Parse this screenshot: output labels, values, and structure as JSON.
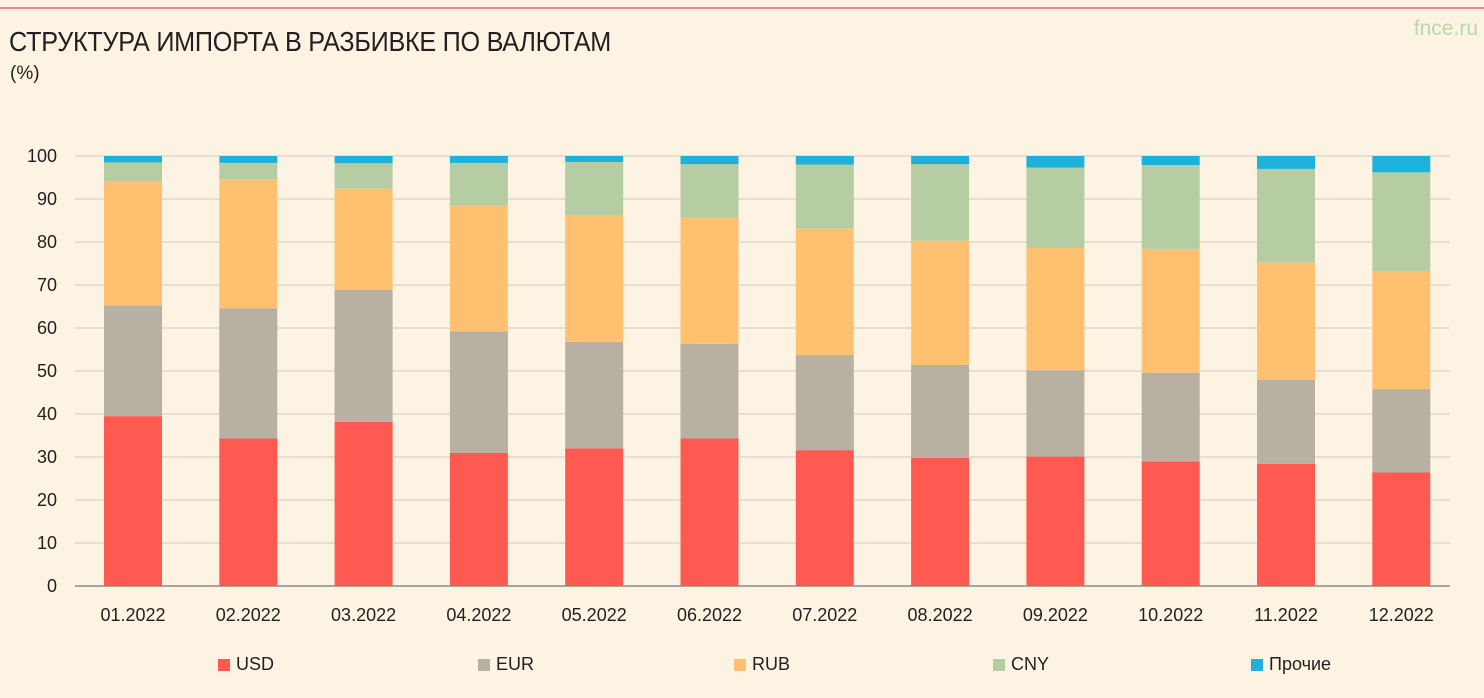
{
  "header": {
    "title": "СТРУКТУРА ИМПОРТА В РАЗБИВКЕ ПО ВАЛЮТАМ",
    "unit": "(%)",
    "brand": "fnce.ru"
  },
  "chart_data": {
    "type": "bar",
    "stacked": true,
    "title": "СТРУКТУРА ИМПОРТА В РАЗБИВКЕ ПО ВАЛЮТАМ",
    "ylabel": "(%)",
    "ylim": [
      0,
      100
    ],
    "yticks": [
      0,
      10,
      20,
      30,
      40,
      50,
      60,
      70,
      80,
      90,
      100
    ],
    "grid": true,
    "legend_position": "bottom",
    "categories": [
      "01.2022",
      "02.2022",
      "03.2022",
      "04.2022",
      "05.2022",
      "06.2022",
      "07.2022",
      "08.2022",
      "09.2022",
      "10.2022",
      "11.2022",
      "12.2022"
    ],
    "series": [
      {
        "name": "USD",
        "color": "#ff5a51",
        "values": [
          39.5,
          34.3,
          38.2,
          31.0,
          32.0,
          34.3,
          31.6,
          29.8,
          30.1,
          29.0,
          28.4,
          26.4
        ]
      },
      {
        "name": "EUR",
        "color": "#b8b0a3",
        "values": [
          25.8,
          30.3,
          30.7,
          28.2,
          24.8,
          22.0,
          22.1,
          21.6,
          20.1,
          20.6,
          19.5,
          19.4
        ]
      },
      {
        "name": "RUB",
        "color": "#ffc170",
        "values": [
          28.8,
          29.9,
          23.5,
          29.3,
          29.3,
          29.4,
          29.4,
          28.9,
          28.4,
          28.8,
          27.3,
          27.3
        ]
      },
      {
        "name": "CNY",
        "color": "#b6cda4",
        "values": [
          4.4,
          3.9,
          5.9,
          9.9,
          12.5,
          12.4,
          14.9,
          17.8,
          18.7,
          19.5,
          21.8,
          23.1
        ]
      },
      {
        "name": "Прочие",
        "color": "#1eb2da",
        "values": [
          1.5,
          1.6,
          1.7,
          1.6,
          1.4,
          1.9,
          2.0,
          1.9,
          2.7,
          2.1,
          3.0,
          3.8
        ]
      }
    ]
  }
}
